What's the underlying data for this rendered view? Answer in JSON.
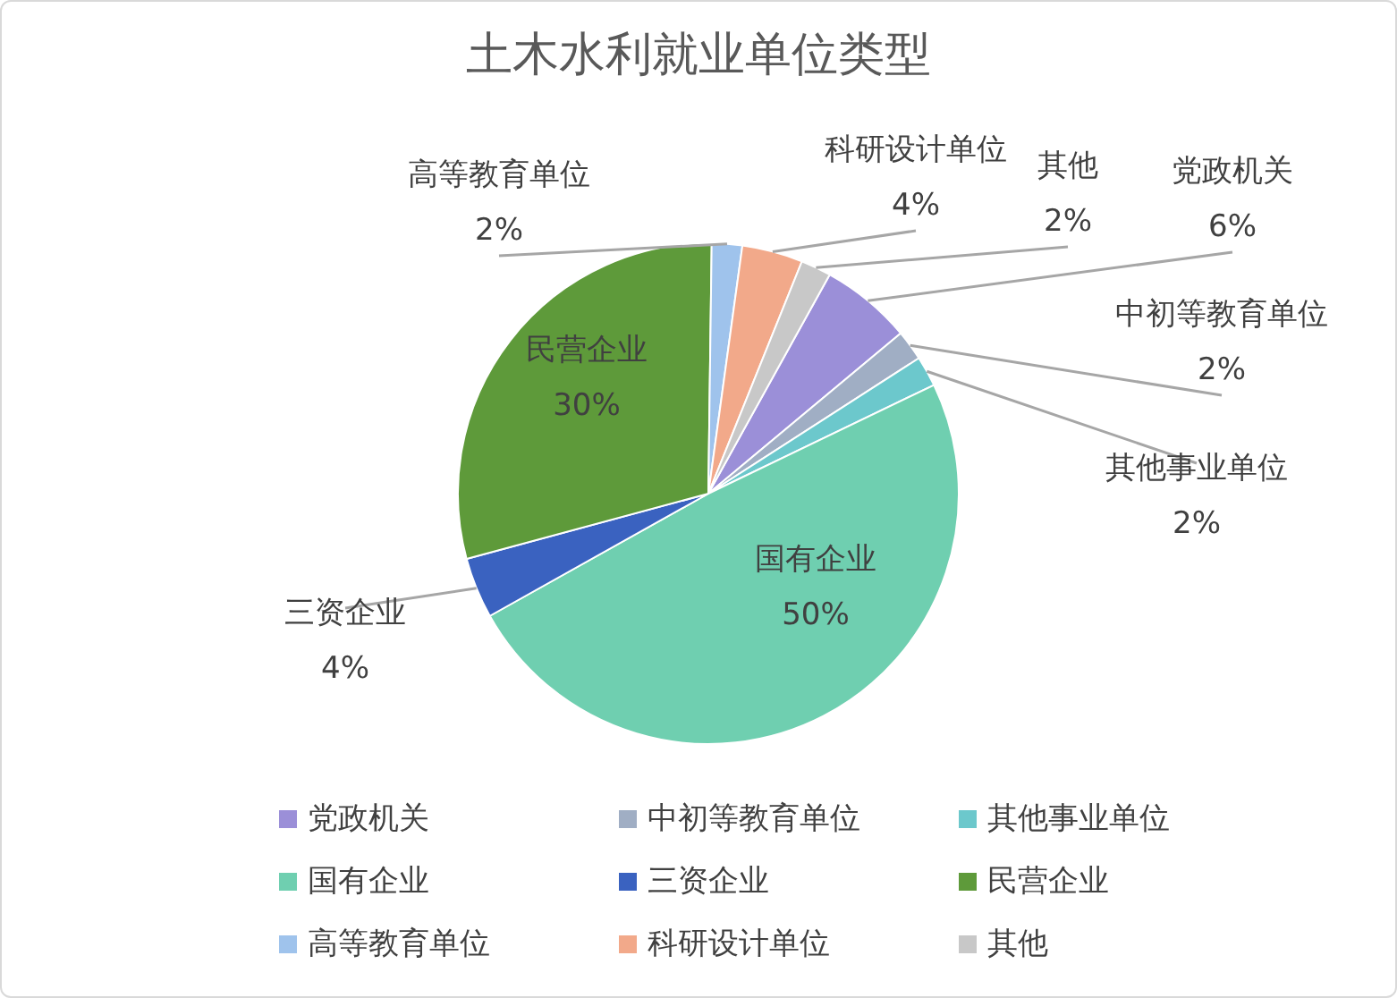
{
  "chart_data": {
    "type": "pie",
    "title": "土木水利就业单位类型",
    "categories": [
      "党政机关",
      "中初等教育单位",
      "其他事业单位",
      "国有企业",
      "三资企业",
      "民营企业",
      "高等教育单位",
      "科研设计单位",
      "其他"
    ],
    "values": [
      6,
      2,
      2,
      50,
      4,
      30,
      2,
      4,
      2
    ],
    "colors": [
      "#9b8fd8",
      "#a0aec4",
      "#6cc8cc",
      "#6fcfb0",
      "#3a62c0",
      "#5e9a3a",
      "#9fc3ec",
      "#f2a98a",
      "#c8c8c8"
    ],
    "value_labels": [
      "6%",
      "2%",
      "2%",
      "50%",
      "4%",
      "30%",
      "2%",
      "4%",
      "2%"
    ],
    "legend": "bottom"
  }
}
